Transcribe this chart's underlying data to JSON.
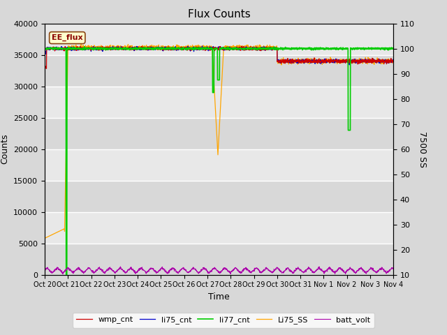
{
  "title": "Flux Counts",
  "xlabel": "Time",
  "ylabel_left": "Counts",
  "ylabel_right": "7500 SS",
  "annotation": "EE_flux",
  "ylim_left": [
    0,
    40000
  ],
  "ylim_right": [
    10,
    110
  ],
  "xtick_labels": [
    "Oct 20",
    "Oct 21",
    "Oct 22",
    "Oct 23",
    "Oct 24",
    "Oct 25",
    "Oct 26",
    "Oct 27",
    "Oct 28",
    "Oct 29",
    "Oct 30",
    "Oct 31",
    "Nov 1",
    "Nov 2",
    "Nov 3",
    "Nov 4"
  ],
  "legend": [
    {
      "label": "wmp_cnt",
      "color": "#cc0000"
    },
    {
      "label": "li75_cnt",
      "color": "#0000cc"
    },
    {
      "label": "li77_cnt",
      "color": "#00cc00"
    },
    {
      "label": "Li75_SS",
      "color": "#ffa500"
    },
    {
      "label": "batt_volt",
      "color": "#aa00aa"
    }
  ],
  "fig_bg": "#d8d8d8",
  "plot_bg": "#e8e8e8",
  "annotation_facecolor": "#ffffcc",
  "annotation_edgecolor": "#8B4513",
  "annotation_textcolor": "#8B0000"
}
